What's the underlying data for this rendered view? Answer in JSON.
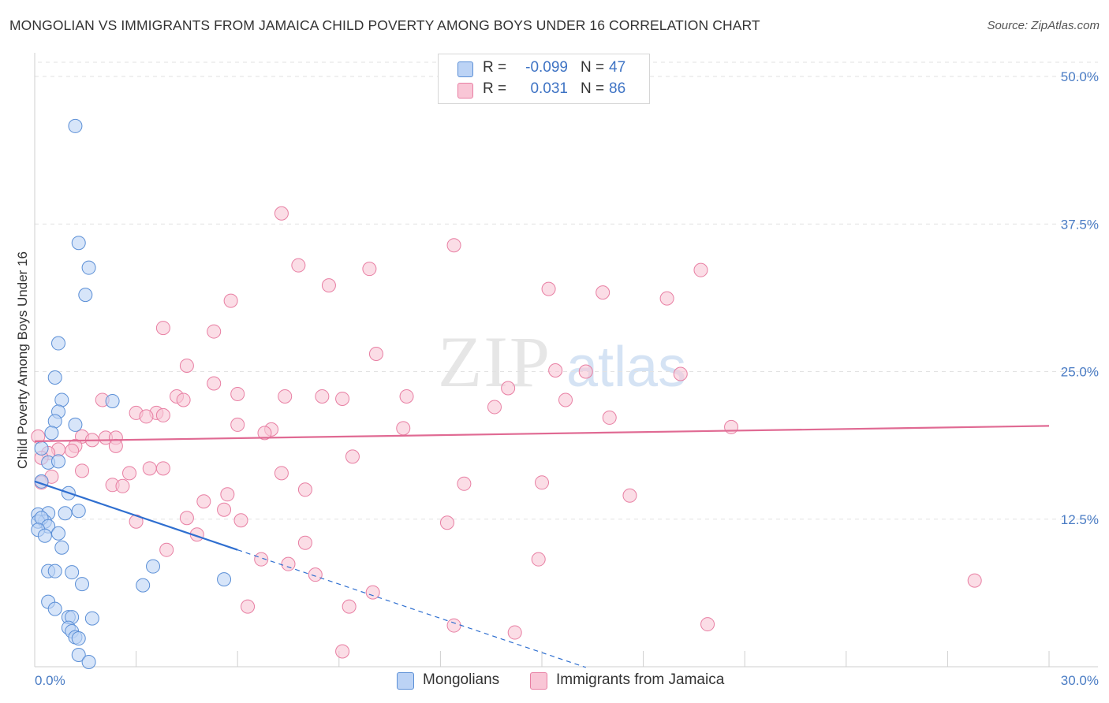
{
  "title": "MONGOLIAN VS IMMIGRANTS FROM JAMAICA CHILD POVERTY AMONG BOYS UNDER 16 CORRELATION CHART",
  "source": "Source: ZipAtlas.com",
  "watermark": {
    "zip": "ZIP",
    "atlas": "atlas"
  },
  "legend_stats": [
    {
      "name": "Mongolians",
      "r_label": "R =",
      "r_value": "-0.099",
      "n_label": "N =",
      "n_value": "47",
      "color": "#5b8fd6",
      "fill": "#bcd3f5"
    },
    {
      "name": "Immigrants from Jamaica",
      "r_label": "R =",
      "r_value": "0.031",
      "n_label": "N =",
      "n_value": "86",
      "color": "#e87fa3",
      "fill": "#f9c6d6"
    }
  ],
  "chart_data": {
    "type": "scatter",
    "title": "MONGOLIAN VS IMMIGRANTS FROM JAMAICA CHILD POVERTY AMONG BOYS UNDER 16 CORRELATION CHART",
    "xlabel": "",
    "ylabel": "Child Poverty Among Boys Under 16",
    "xlim": [
      0,
      30
    ],
    "ylim": [
      0,
      50
    ],
    "x_tick_labels": [
      "0.0%",
      "30.0%"
    ],
    "y_ticks": [
      12.5,
      25.0,
      37.5,
      50.0
    ],
    "y_tick_labels": [
      "12.5%",
      "25.0%",
      "37.5%",
      "50.0%"
    ],
    "grid": true,
    "legend_position": "bottom",
    "series": [
      {
        "name": "Mongolians",
        "color": "#5b8fd6",
        "fill": "#bcd3f5",
        "trend": {
          "x0": 0,
          "y0": 15.7,
          "x1": 6.0,
          "y1": 9.9,
          "dash_to_x": 16.3
        },
        "points": [
          [
            1.2,
            45.8
          ],
          [
            1.3,
            35.9
          ],
          [
            1.6,
            33.8
          ],
          [
            1.5,
            31.5
          ],
          [
            0.7,
            27.4
          ],
          [
            0.6,
            24.5
          ],
          [
            2.3,
            22.5
          ],
          [
            0.8,
            22.6
          ],
          [
            0.7,
            21.6
          ],
          [
            0.6,
            20.8
          ],
          [
            1.2,
            20.5
          ],
          [
            0.5,
            19.8
          ],
          [
            0.2,
            18.5
          ],
          [
            0.4,
            17.3
          ],
          [
            0.7,
            17.4
          ],
          [
            0.2,
            15.7
          ],
          [
            1.0,
            14.7
          ],
          [
            0.1,
            12.9
          ],
          [
            0.4,
            13.0
          ],
          [
            0.9,
            13.0
          ],
          [
            1.3,
            13.2
          ],
          [
            0.3,
            12.3
          ],
          [
            0.1,
            12.3
          ],
          [
            0.2,
            12.6
          ],
          [
            0.4,
            11.9
          ],
          [
            0.1,
            11.6
          ],
          [
            0.3,
            11.1
          ],
          [
            0.7,
            11.3
          ],
          [
            0.8,
            10.1
          ],
          [
            0.4,
            8.1
          ],
          [
            0.6,
            8.1
          ],
          [
            1.1,
            8.0
          ],
          [
            1.4,
            7.0
          ],
          [
            3.5,
            8.5
          ],
          [
            3.2,
            6.9
          ],
          [
            5.6,
            7.4
          ],
          [
            0.4,
            5.5
          ],
          [
            0.6,
            4.9
          ],
          [
            1.0,
            4.2
          ],
          [
            1.1,
            4.2
          ],
          [
            1.7,
            4.1
          ],
          [
            1.0,
            3.3
          ],
          [
            1.1,
            3.0
          ],
          [
            1.2,
            2.5
          ],
          [
            1.3,
            2.4
          ],
          [
            1.3,
            1.0
          ],
          [
            1.6,
            0.4
          ]
        ]
      },
      {
        "name": "Immigrants from Jamaica",
        "color": "#e87fa3",
        "fill": "#f9c6d6",
        "trend": {
          "x0": 0,
          "y0": 19.1,
          "x1": 30.0,
          "y1": 20.4
        },
        "points": [
          [
            7.3,
            38.4
          ],
          [
            12.4,
            35.7
          ],
          [
            7.8,
            34.0
          ],
          [
            9.9,
            33.7
          ],
          [
            8.7,
            32.3
          ],
          [
            15.2,
            32.0
          ],
          [
            16.8,
            31.7
          ],
          [
            18.7,
            31.2
          ],
          [
            19.7,
            33.6
          ],
          [
            5.8,
            31.0
          ],
          [
            3.8,
            28.7
          ],
          [
            5.3,
            28.4
          ],
          [
            10.1,
            26.5
          ],
          [
            4.5,
            25.5
          ],
          [
            15.4,
            25.1
          ],
          [
            5.3,
            24.0
          ],
          [
            14.0,
            23.6
          ],
          [
            6.0,
            23.1
          ],
          [
            4.2,
            22.9
          ],
          [
            8.5,
            22.9
          ],
          [
            7.4,
            22.9
          ],
          [
            4.4,
            22.6
          ],
          [
            2.0,
            22.6
          ],
          [
            9.1,
            22.7
          ],
          [
            15.7,
            22.6
          ],
          [
            3.0,
            21.5
          ],
          [
            3.6,
            21.5
          ],
          [
            3.3,
            21.2
          ],
          [
            3.8,
            21.3
          ],
          [
            17.0,
            21.1
          ],
          [
            6.0,
            20.5
          ],
          [
            10.9,
            20.2
          ],
          [
            20.6,
            20.3
          ],
          [
            7.0,
            20.1
          ],
          [
            6.8,
            19.8
          ],
          [
            1.4,
            19.5
          ],
          [
            2.1,
            19.4
          ],
          [
            2.4,
            19.4
          ],
          [
            1.7,
            19.2
          ],
          [
            1.2,
            18.7
          ],
          [
            0.7,
            18.4
          ],
          [
            0.4,
            18.1
          ],
          [
            2.4,
            18.7
          ],
          [
            1.1,
            18.3
          ],
          [
            0.2,
            17.7
          ],
          [
            9.4,
            17.8
          ],
          [
            3.4,
            16.8
          ],
          [
            3.8,
            16.8
          ],
          [
            1.4,
            16.6
          ],
          [
            2.8,
            16.4
          ],
          [
            7.3,
            16.4
          ],
          [
            0.5,
            16.1
          ],
          [
            0.2,
            15.6
          ],
          [
            2.3,
            15.4
          ],
          [
            2.6,
            15.3
          ],
          [
            15.0,
            15.6
          ],
          [
            8.0,
            15.0
          ],
          [
            12.7,
            15.5
          ],
          [
            5.7,
            14.6
          ],
          [
            5.0,
            14.0
          ],
          [
            17.6,
            14.5
          ],
          [
            5.6,
            13.3
          ],
          [
            4.5,
            12.6
          ],
          [
            6.1,
            12.4
          ],
          [
            3.0,
            12.3
          ],
          [
            12.2,
            12.2
          ],
          [
            4.8,
            11.2
          ],
          [
            8.0,
            10.5
          ],
          [
            3.9,
            9.9
          ],
          [
            6.7,
            9.1
          ],
          [
            7.5,
            8.7
          ],
          [
            14.9,
            9.1
          ],
          [
            8.3,
            7.8
          ],
          [
            27.8,
            7.3
          ],
          [
            10.0,
            6.3
          ],
          [
            6.3,
            5.1
          ],
          [
            9.3,
            5.1
          ],
          [
            12.4,
            3.5
          ],
          [
            19.9,
            3.6
          ],
          [
            14.2,
            2.9
          ],
          [
            9.1,
            1.3
          ],
          [
            0.1,
            19.5
          ],
          [
            13.6,
            22.0
          ],
          [
            16.3,
            25.0
          ],
          [
            11.0,
            22.9
          ],
          [
            19.1,
            24.8
          ]
        ]
      }
    ]
  }
}
